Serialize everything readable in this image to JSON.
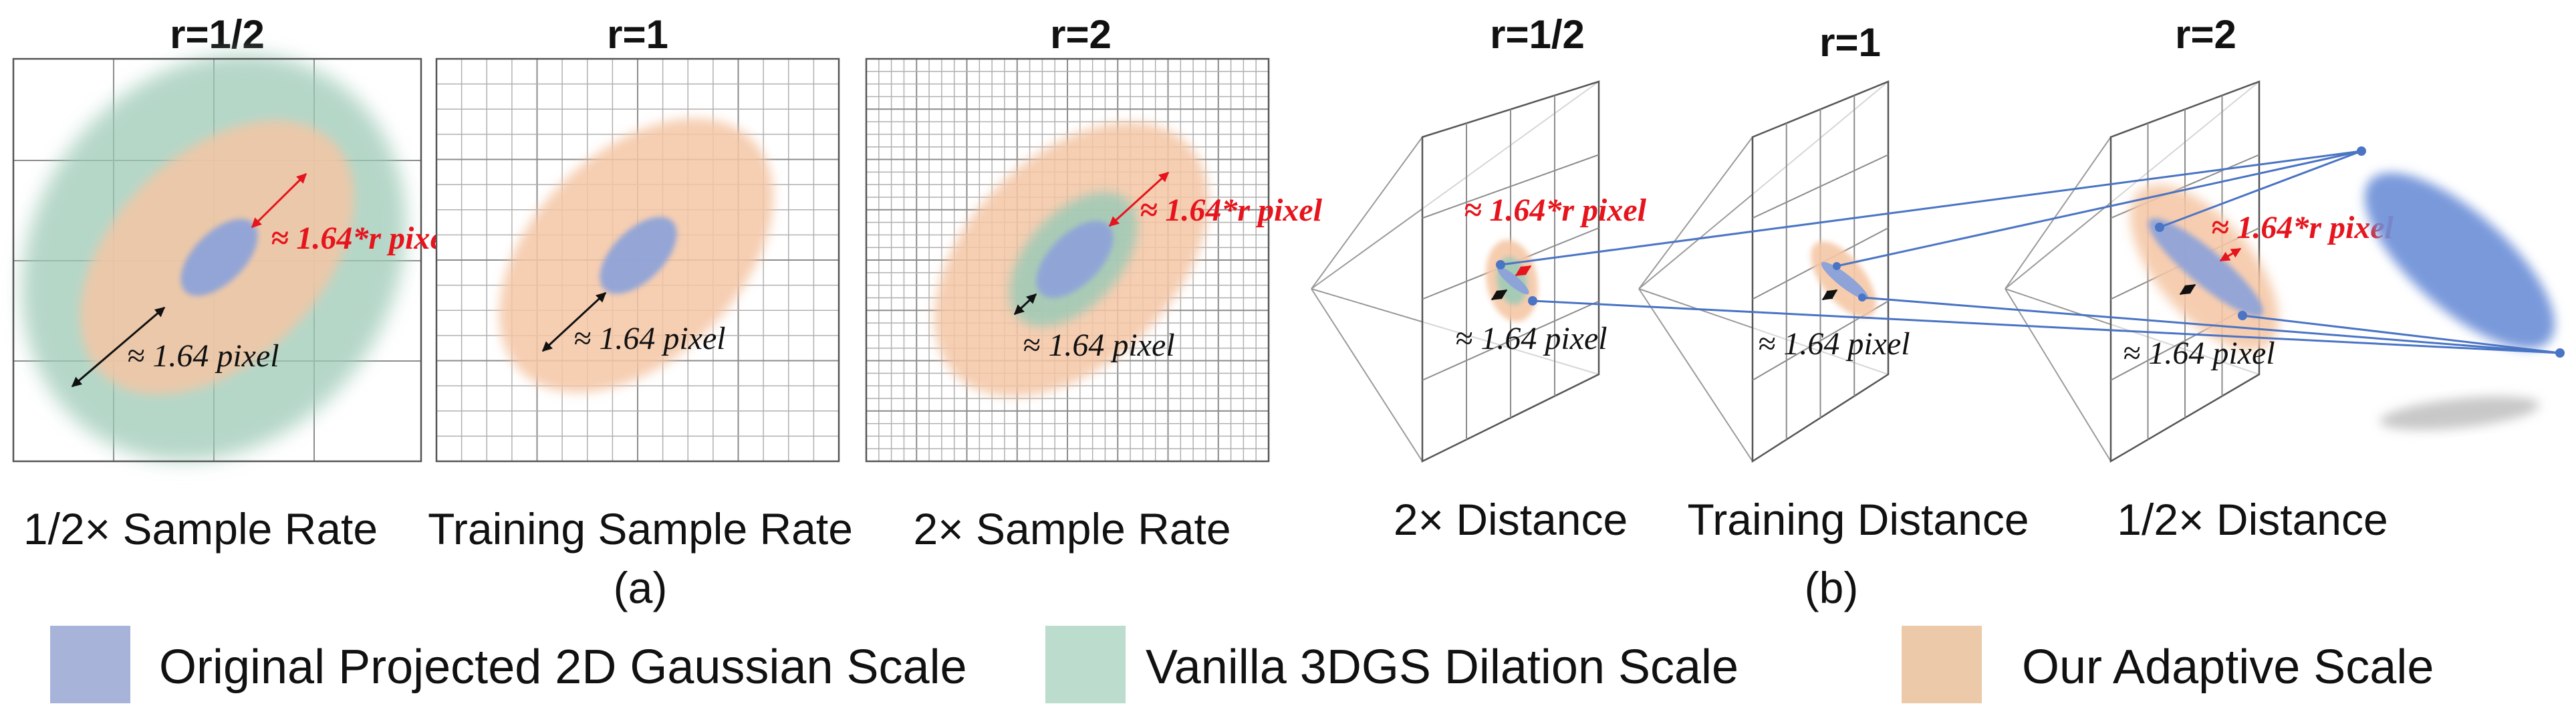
{
  "colors": {
    "blue": "#8ea3d8",
    "green": "#9ccab6",
    "orange": "#f5c6a5",
    "red": "#e6141c",
    "black": "#111111",
    "ray": "#4a74c4"
  },
  "panel_a": {
    "letter": "(a)",
    "panels": [
      {
        "title": "r=1/2",
        "caption": "1/2× Sample Rate"
      },
      {
        "title": "r=1",
        "caption": "Training Sample Rate"
      },
      {
        "title": "r=2",
        "caption": "2× Sample Rate"
      }
    ]
  },
  "panel_b": {
    "letter": "(b)",
    "panels": [
      {
        "title": "r=1/2",
        "caption": "2× Distance"
      },
      {
        "title": "r=1",
        "caption": "Training Distance"
      },
      {
        "title": "r=2",
        "caption": "1/2× Distance"
      }
    ]
  },
  "annotations": {
    "adaptive": "≈ 1.64*r pixel",
    "dilation": "≈ 1.64 pixel"
  },
  "legend": [
    {
      "label": "Original Projected 2D Gaussian Scale",
      "color": "#a7b3d9"
    },
    {
      "label": "Vanilla 3DGS Dilation Scale",
      "color": "#bcdccd"
    },
    {
      "label": "Our Adaptive Scale",
      "color": "#ecc9a9"
    }
  ]
}
